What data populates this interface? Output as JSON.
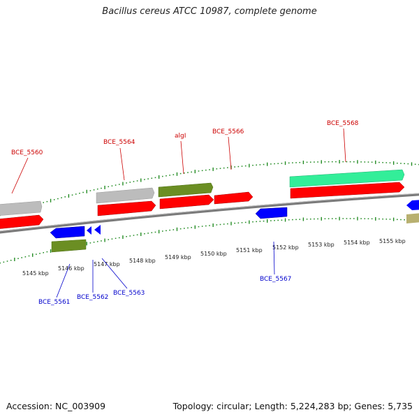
{
  "title": "Bacillus cereus ATCC 10987, complete genome",
  "footer": {
    "accession": "Accession: NC_003909",
    "topology": "Topology: circular; Length: 5,224,283 bp; Genes: 5,735"
  },
  "colors": {
    "forward_label": "#cc0000",
    "reverse_label": "#0000cc",
    "backbone": "#888888",
    "tick": "#228b22",
    "red_cds": "#ff0000",
    "grey_gene": "#bbbbbb",
    "olive_gene": "#6b8e23",
    "teal_gene": "#33ee99",
    "blue_cds": "#0000ff",
    "khaki_gene": "#b8b070"
  },
  "scale_labels": [
    "5145 kbp",
    "5146 kbp",
    "5147 kbp",
    "5148 kbp",
    "5149 kbp",
    "5150 kbp",
    "5151 kbp",
    "5152 kbp",
    "5153 kbp",
    "5154 kbp",
    "5155 kbp"
  ],
  "forward_gene_labels": [
    "BCE_5560",
    "BCE_5564",
    "algI",
    "BCE_5566",
    "BCE_5568"
  ],
  "reverse_gene_labels": [
    "BCE_5561",
    "BCE_5562",
    "BCE_5563",
    "BCE_5567"
  ]
}
